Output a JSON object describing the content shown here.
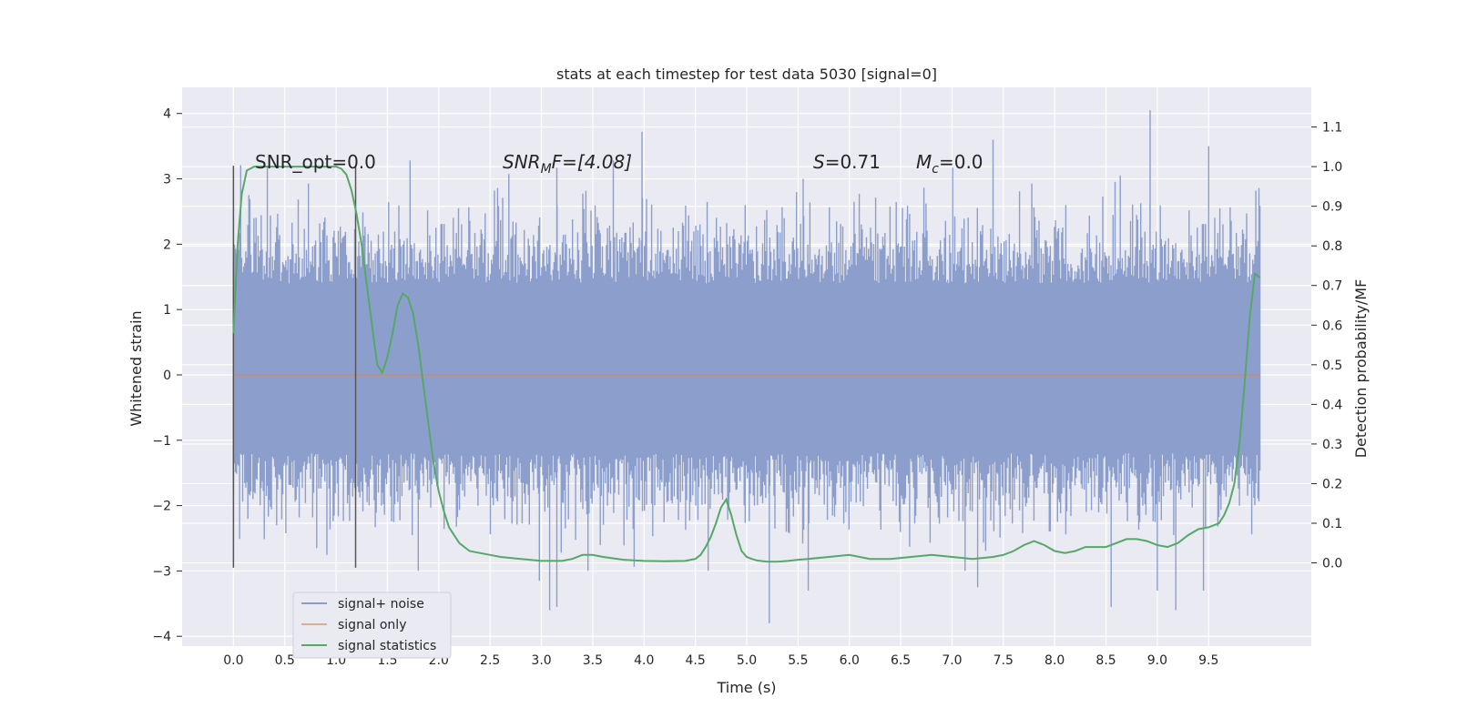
{
  "chart_data": {
    "type": "line",
    "title": "stats at each timestep for test data 5030 [signal=0]",
    "xlabel": "Time (s)",
    "ylabel_left": "Whitened strain",
    "ylabel_right": "Detection probability/MF",
    "xlim": [
      -0.5,
      10.5
    ],
    "ylim_left": [
      -4.15,
      4.4
    ],
    "ylim_right": [
      -0.21,
      1.2
    ],
    "x_ticks": [
      "0.0",
      "0.5",
      "1.0",
      "1.5",
      "2.0",
      "2.5",
      "3.0",
      "3.5",
      "4.0",
      "4.5",
      "5.0",
      "5.5",
      "6.0",
      "6.5",
      "7.0",
      "7.5",
      "8.0",
      "8.5",
      "9.0",
      "9.5"
    ],
    "y_ticks_left": [
      "4",
      "3",
      "2",
      "1",
      "0",
      "−1",
      "−2",
      "−3",
      "−4"
    ],
    "y_ticks_right": [
      "1.1",
      "1.0",
      "0.9",
      "0.8",
      "0.7",
      "0.6",
      "0.5",
      "0.4",
      "0.3",
      "0.2",
      "0.1",
      "0.0"
    ],
    "grid": true,
    "legend_position": "bottom-left",
    "legend": [
      {
        "label": "signal+ noise",
        "color": "#8c9fcc"
      },
      {
        "label": "signal only",
        "color": "#dd8452"
      },
      {
        "label": "signal statistics",
        "color": "#55a868"
      }
    ],
    "annotations": {
      "snr_opt": "SNR_opt=0.0",
      "snr_mf_base": "SNR",
      "snr_mf_sub": "M",
      "snr_mf_rest": "F=[4.08]",
      "s_base": "S",
      "s_rest": "=0.71",
      "mc_base": "M",
      "mc_sub": "c",
      "mc_rest": "=0.0"
    },
    "vertical_lines_x": [
      0.0,
      1.19
    ],
    "vertical_lines_range": [
      -2.95,
      3.2
    ],
    "signal_noise": {
      "x_range": [
        0.0,
        10.0
      ],
      "band": [
        -1.1,
        1.35
      ],
      "extreme_peaks": [
        {
          "x": 0.33,
          "y": 3.18
        },
        {
          "x": 1.72,
          "y": 3.28
        },
        {
          "x": 3.15,
          "y": 3.17
        },
        {
          "x": 3.7,
          "y": 3.28
        },
        {
          "x": 3.98,
          "y": 3.72
        },
        {
          "x": 5.55,
          "y": 3.0
        },
        {
          "x": 7.4,
          "y": 3.6
        },
        {
          "x": 8.93,
          "y": 4.05
        },
        {
          "x": 9.5,
          "y": 3.5
        },
        {
          "x": 1.8,
          "y": -3.0
        },
        {
          "x": 2.98,
          "y": -3.15
        },
        {
          "x": 3.08,
          "y": -3.6
        },
        {
          "x": 3.15,
          "y": -3.55
        },
        {
          "x": 5.22,
          "y": -3.8
        },
        {
          "x": 5.6,
          "y": -3.3
        },
        {
          "x": 8.55,
          "y": -3.55
        },
        {
          "x": 9.0,
          "y": -3.3
        },
        {
          "x": 9.18,
          "y": -3.6
        },
        {
          "x": 9.45,
          "y": -3.3
        },
        {
          "x": 7.25,
          "y": -3.25
        }
      ]
    },
    "signal_only": {
      "x": [
        0.0,
        10.0
      ],
      "y": [
        0.0,
        0.0
      ]
    },
    "signal_statistics": {
      "x": [
        0.0,
        0.04,
        0.08,
        0.13,
        0.2,
        0.3,
        0.4,
        0.5,
        0.6,
        0.7,
        0.8,
        0.9,
        1.0,
        1.05,
        1.1,
        1.15,
        1.2,
        1.25,
        1.3,
        1.35,
        1.4,
        1.45,
        1.5,
        1.55,
        1.6,
        1.65,
        1.7,
        1.75,
        1.8,
        1.85,
        1.9,
        1.95,
        2.0,
        2.05,
        2.1,
        2.15,
        2.2,
        2.3,
        2.4,
        2.5,
        2.6,
        2.8,
        3.0,
        3.2,
        3.3,
        3.4,
        3.5,
        3.6,
        3.8,
        4.0,
        4.2,
        4.4,
        4.5,
        4.55,
        4.6,
        4.65,
        4.7,
        4.75,
        4.8,
        4.85,
        4.9,
        4.95,
        5.0,
        5.05,
        5.1,
        5.2,
        5.3,
        5.4,
        5.5,
        5.6,
        5.8,
        6.0,
        6.2,
        6.4,
        6.6,
        6.8,
        7.0,
        7.2,
        7.4,
        7.5,
        7.6,
        7.7,
        7.8,
        7.9,
        8.0,
        8.1,
        8.2,
        8.3,
        8.4,
        8.5,
        8.6,
        8.7,
        8.8,
        8.9,
        9.0,
        9.1,
        9.2,
        9.3,
        9.4,
        9.5,
        9.6,
        9.65,
        9.7,
        9.75,
        9.8,
        9.85,
        9.9,
        9.95,
        10.0
      ],
      "y": [
        0.58,
        0.8,
        0.93,
        0.99,
        1.0,
        1.0,
        1.0,
        1.0,
        1.0,
        1.0,
        1.0,
        1.0,
        1.0,
        0.995,
        0.98,
        0.94,
        0.88,
        0.8,
        0.7,
        0.6,
        0.5,
        0.48,
        0.52,
        0.58,
        0.65,
        0.68,
        0.67,
        0.63,
        0.55,
        0.45,
        0.35,
        0.25,
        0.18,
        0.13,
        0.09,
        0.07,
        0.05,
        0.03,
        0.025,
        0.02,
        0.015,
        0.01,
        0.005,
        0.005,
        0.01,
        0.02,
        0.02,
        0.015,
        0.008,
        0.005,
        0.004,
        0.005,
        0.01,
        0.02,
        0.04,
        0.065,
        0.1,
        0.14,
        0.16,
        0.12,
        0.07,
        0.03,
        0.015,
        0.01,
        0.006,
        0.003,
        0.003,
        0.005,
        0.008,
        0.01,
        0.015,
        0.02,
        0.01,
        0.01,
        0.015,
        0.02,
        0.015,
        0.01,
        0.015,
        0.02,
        0.03,
        0.045,
        0.055,
        0.045,
        0.03,
        0.025,
        0.03,
        0.04,
        0.04,
        0.04,
        0.05,
        0.06,
        0.06,
        0.055,
        0.045,
        0.04,
        0.05,
        0.07,
        0.085,
        0.09,
        0.1,
        0.12,
        0.15,
        0.2,
        0.3,
        0.45,
        0.62,
        0.73,
        0.72
      ]
    }
  }
}
